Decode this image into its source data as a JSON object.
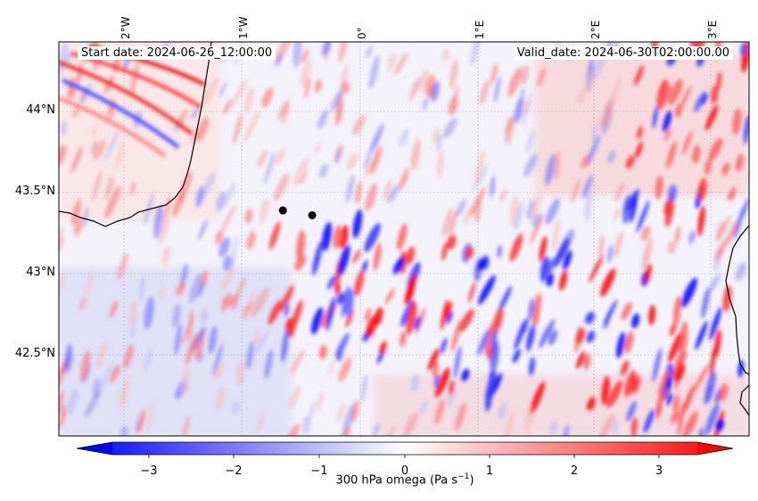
{
  "map": {
    "start_date": "Start date: 2024-06-26_12:00:00",
    "valid_date": "Valid_date: 2024-06-30T02:00:00.00",
    "longitude_labels": [
      "2°W",
      "1°W",
      "0°",
      "1°E",
      "2°E",
      "3°E"
    ],
    "latitude_labels": [
      "44°N",
      "43.5°N",
      "43°N",
      "42.5°N"
    ],
    "markers": [
      {
        "lon": -0.66,
        "lat": 43.39
      },
      {
        "lon": -0.41,
        "lat": 43.36
      }
    ]
  },
  "colorbar": {
    "label_prefix": "300 hPa omega (Pa s",
    "label_exp": "−1",
    "label_suffix": ")",
    "ticks": [
      "−3",
      "−2",
      "−1",
      "0",
      "1",
      "2",
      "3"
    ],
    "range": [
      -3.6,
      3.6
    ],
    "colormap": "bwr",
    "colors": {
      "low": "#0000ff",
      "mid": "#ffffff",
      "high": "#ff0000"
    }
  }
}
